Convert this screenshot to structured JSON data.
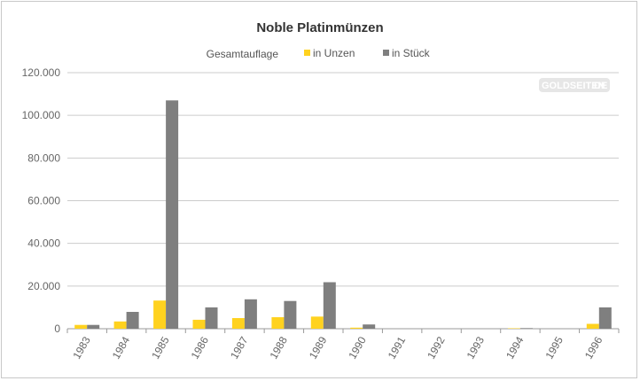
{
  "chart_data": {
    "type": "bar",
    "title": "Noble Platinmünzen",
    "legend_title": "Gesamtauflage",
    "categories": [
      "1983",
      "1984",
      "1985",
      "1986",
      "1987",
      "1988",
      "1989",
      "1990",
      "1991",
      "1992",
      "1993",
      "1994",
      "1995",
      "1996"
    ],
    "series": [
      {
        "name": "in Unzen",
        "color": "#FFD21F",
        "values": [
          1800,
          3400,
          13200,
          4200,
          5000,
          5400,
          5700,
          500,
          0,
          0,
          0,
          200,
          0,
          2300
        ]
      },
      {
        "name": "in Stück",
        "color": "#7F7F7F",
        "values": [
          1800,
          7900,
          107000,
          10000,
          13800,
          13000,
          21800,
          2000,
          0,
          0,
          0,
          300,
          0,
          10000
        ]
      }
    ],
    "ylim": [
      0,
      120000
    ],
    "yticks": [
      "0",
      "20.000",
      "40.000",
      "60.000",
      "80.000",
      "100.000",
      "120.000"
    ],
    "xlabel": "",
    "ylabel": "",
    "grid": true,
    "legend_position": "top-center"
  },
  "watermark": {
    "text_left": "GOLDSEITEN",
    "text_right": ".DE"
  }
}
